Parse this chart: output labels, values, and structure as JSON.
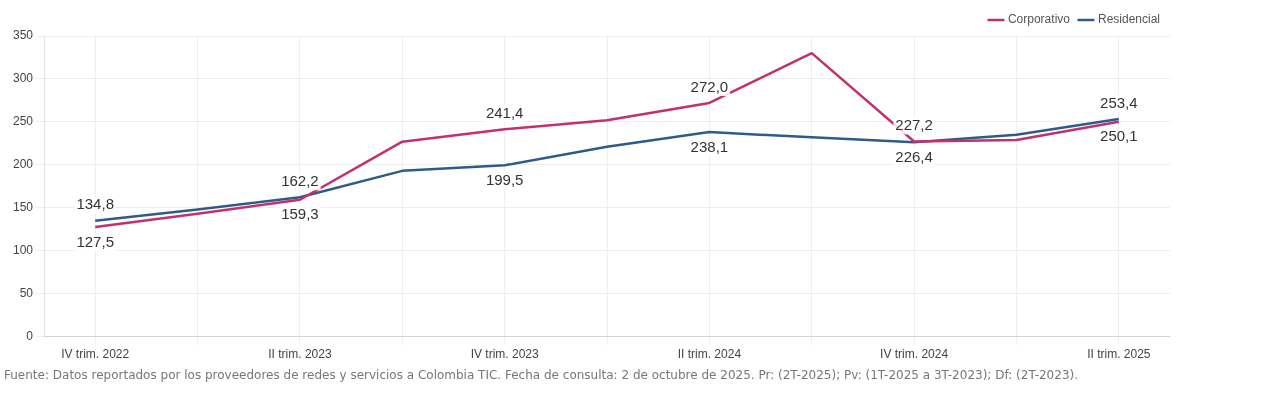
{
  "chart_data": {
    "type": "line",
    "categories": [
      "IV trim. 2022",
      null,
      "II trim. 2023",
      null,
      "IV trim. 2023",
      null,
      "II trim. 2024",
      null,
      "IV trim. 2024",
      null,
      "II trim. 2025"
    ],
    "series": [
      {
        "name": "Corporativo",
        "color": "#c2306e",
        "values": [
          127.5,
          143,
          159.3,
          227,
          241.4,
          252,
          272.0,
          330,
          227.2,
          229,
          250.1
        ],
        "value_labels": [
          "127,5",
          null,
          "159,3",
          null,
          "241,4",
          null,
          "272,0",
          null,
          "227,2",
          null,
          "250,1"
        ]
      },
      {
        "name": "Residencial",
        "color": "#2e5a8c",
        "values": [
          134.8,
          148,
          162.2,
          193,
          199.5,
          221,
          238.1,
          232,
          226.4,
          235,
          253.4
        ],
        "value_labels": [
          "134,8",
          null,
          "162,2",
          null,
          "199,5",
          null,
          "238,1",
          null,
          "226,4",
          null,
          "253,4"
        ]
      }
    ],
    "ylim": [
      0,
      350
    ],
    "yticks": [
      0,
      50,
      100,
      150,
      200,
      250,
      300,
      350
    ],
    "grid": true,
    "legend": "top right",
    "marker": "none",
    "line_style": "solid",
    "annotations": [
      "Fuente: Datos reportados por los proveedores de redes y servicios a Colombia TIC. Fecha de consulta: 2 de octubre de 2025. Pr: (2T-2025); Pv: (1T-2025 a 3T-2023); Df: (2T-2023)."
    ]
  }
}
